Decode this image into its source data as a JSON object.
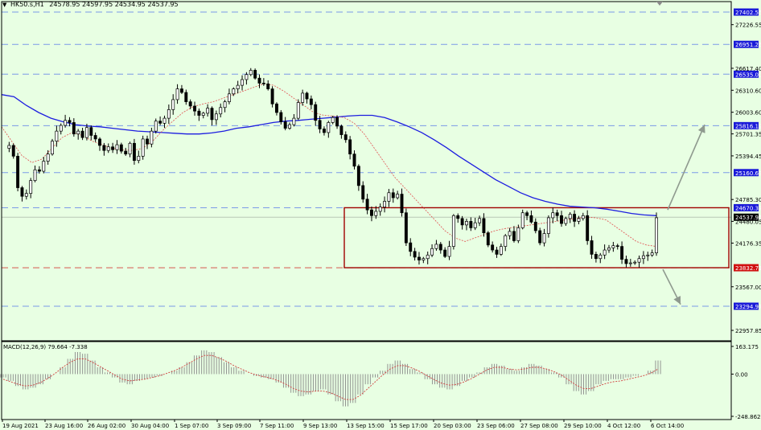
{
  "header": {
    "symbol": "HK50.s,H1",
    "ohlc": "24578.95 24597.95 24534.95 24537.95",
    "macd_label": "MACD(12,26,9) 79.664 -7.338"
  },
  "colors": {
    "background": "#e8ffe3",
    "candle": "#000000",
    "ma_slow": "#1d1de0",
    "ma_fast": "#e05050",
    "level_line": "#6f8fe8",
    "level_badge": "#1a1ad8",
    "current_badge": "#000000",
    "support_badge": "#d01010",
    "range_box": "#a00000",
    "arrow": "#8f9a8f",
    "macd_hist": "#8a8a8a",
    "macd_signal": "#d04040"
  },
  "chart_data": {
    "type": "candlestick",
    "timeframe": "H1",
    "x_ticks": [
      "19 Aug 2021",
      "23 Aug 16:00",
      "26 Aug 02:00",
      "30 Aug 04:00",
      "1 Sep 07:00",
      "3 Sep 09:00",
      "7 Sep 11:00",
      "9 Sep 13:00",
      "13 Sep 15:00",
      "15 Sep 17:00",
      "20 Sep 03:00",
      "23 Sep 06:00",
      "27 Sep 08:00",
      "29 Sep 10:00",
      "4 Oct 12:00",
      "6 Oct 14:00"
    ],
    "y_ticks": [
      "27226.55",
      "26617.40",
      "26310.60",
      "26003.60",
      "25701.35",
      "25394.45",
      "24785.30",
      "24480.05",
      "24176.35",
      "23567.00",
      "22957.85"
    ],
    "y_range": [
      22800,
      27500
    ],
    "levels": [
      {
        "label": "27402.55",
        "price": 27402.55,
        "style": "blue"
      },
      {
        "label": "26951.26",
        "price": 26951.26,
        "style": "blue"
      },
      {
        "label": "26535.00",
        "price": 26535.0,
        "style": "blue"
      },
      {
        "label": "25816.19",
        "price": 25816.19,
        "style": "blue"
      },
      {
        "label": "25160.63",
        "price": 25160.63,
        "style": "blue"
      },
      {
        "label": "24670.37",
        "price": 24670.37,
        "style": "blue"
      },
      {
        "label": "24537.95",
        "price": 24537.95,
        "style": "current"
      },
      {
        "label": "23832.71",
        "price": 23832.71,
        "style": "red"
      },
      {
        "label": "23294.97",
        "price": 23294.97,
        "style": "blue"
      }
    ],
    "range_box": {
      "top": 24670.37,
      "bottom": 23832.71,
      "start_index": 420
    },
    "arrows": [
      {
        "from_price": 24640,
        "to_price": 25830,
        "direction": "up"
      },
      {
        "from_price": 23810,
        "to_price": 23320,
        "direction": "down"
      }
    ],
    "close_path": [
      25500,
      25540,
      25390,
      24950,
      24830,
      24870,
      25050,
      25200,
      25180,
      25320,
      25420,
      25600,
      25740,
      25820,
      25890,
      25860,
      25700,
      25740,
      25650,
      25790,
      25680,
      25630,
      25540,
      25470,
      25520,
      25480,
      25550,
      25460,
      25420,
      25570,
      25330,
      25390,
      25630,
      25560,
      25740,
      25880,
      25850,
      25920,
      26040,
      26180,
      26330,
      26280,
      26150,
      26090,
      26020,
      25960,
      25990,
      26060,
      25900,
      25980,
      26070,
      26150,
      26260,
      26330,
      26380,
      26460,
      26530,
      26590,
      26480,
      26410,
      26400,
      26330,
      26120,
      26000,
      25870,
      25780,
      25830,
      25920,
      26140,
      26270,
      26190,
      26110,
      25890,
      25770,
      25720,
      25860,
      25930,
      25810,
      25690,
      25620,
      25420,
      25250,
      24980,
      24790,
      24640,
      24560,
      24620,
      24680,
      24760,
      24880,
      24810,
      24860,
      24600,
      24180,
      24060,
      23980,
      23940,
      23960,
      24010,
      24100,
      24160,
      24080,
      23990,
      24130,
      24560,
      24520,
      24430,
      24480,
      24390,
      24460,
      24520,
      24320,
      24150,
      24080,
      24020,
      24130,
      24280,
      24340,
      24210,
      24390,
      24600,
      24560,
      24470,
      24350,
      24180,
      24310,
      24530,
      24600,
      24560,
      24450,
      24520,
      24580,
      24480,
      24520,
      24560,
      24210,
      24020,
      23960,
      24010,
      24080,
      24110,
      24140,
      24130,
      23950,
      23890,
      23900,
      23910,
      23960,
      24000,
      24010,
      24040,
      24530
    ],
    "ma_slow_path": [
      26250,
      26220,
      26100,
      26000,
      25920,
      25870,
      25830,
      25810,
      25800,
      25780,
      25760,
      25740,
      25730,
      25720,
      25710,
      25700,
      25700,
      25715,
      25740,
      25780,
      25800,
      25830,
      25860,
      25880,
      25890,
      25905,
      25920,
      25935,
      25950,
      25960,
      25960,
      25930,
      25870,
      25800,
      25720,
      25620,
      25510,
      25390,
      25280,
      25170,
      25060,
      24970,
      24880,
      24810,
      24760,
      24720,
      24690,
      24680,
      24670,
      24650,
      24620,
      24590,
      24570,
      24560
    ],
    "ma_fast_path": [
      25800,
      25600,
      25400,
      25300,
      25350,
      25500,
      25650,
      25720,
      25680,
      25600,
      25550,
      25500,
      25480,
      25470,
      25500,
      25600,
      25750,
      25880,
      26000,
      26080,
      26120,
      26150,
      26200,
      26250,
      26300,
      26350,
      26400,
      26380,
      26300,
      26200,
      26100,
      26000,
      25960,
      25950,
      25930,
      25850,
      25700,
      25500,
      25300,
      25100,
      24950,
      24800,
      24650,
      24500,
      24350,
      24250,
      24200,
      24250,
      24300,
      24350,
      24380,
      24400,
      24420,
      24440,
      24460,
      24480,
      24500,
      24520,
      24540,
      24530,
      24500,
      24400,
      24300,
      24200,
      24150,
      24130
    ],
    "macd": {
      "label": "MACD(12,26,9) 79.664 -7.338",
      "y_ticks": [
        "163.175",
        "0.00",
        "-248.862"
      ],
      "y_range": [
        -248.862,
        163.175
      ],
      "histogram": [
        -20,
        -40,
        -70,
        -90,
        -80,
        -60,
        -30,
        0,
        40,
        90,
        130,
        120,
        80,
        40,
        10,
        -20,
        -50,
        -60,
        -40,
        -30,
        -20,
        -10,
        0,
        20,
        40,
        70,
        110,
        140,
        130,
        100,
        70,
        40,
        20,
        0,
        -10,
        -20,
        -30,
        -50,
        -80,
        -110,
        -130,
        -120,
        -100,
        -90,
        -120,
        -160,
        -190,
        -170,
        -120,
        -60,
        -20,
        20,
        60,
        80,
        60,
        30,
        10,
        -30,
        -60,
        -80,
        -90,
        -70,
        -40,
        -20,
        10,
        40,
        60,
        50,
        30,
        20,
        40,
        60,
        50,
        30,
        10,
        -20,
        -60,
        -100,
        -120,
        -100,
        -60,
        -40,
        -30,
        -30,
        -20,
        -10,
        0,
        20,
        80
      ],
      "signal": [
        -30,
        -45,
        -60,
        -70,
        -65,
        -50,
        -25,
        5,
        40,
        70,
        90,
        90,
        70,
        45,
        20,
        -5,
        -30,
        -40,
        -35,
        -30,
        -20,
        -10,
        5,
        20,
        40,
        65,
        90,
        110,
        110,
        95,
        75,
        50,
        30,
        10,
        -5,
        -15,
        -25,
        -40,
        -60,
        -85,
        -100,
        -105,
        -100,
        -100,
        -110,
        -130,
        -150,
        -150,
        -125,
        -85,
        -45,
        -5,
        30,
        50,
        50,
        35,
        15,
        -10,
        -35,
        -55,
        -65,
        -60,
        -45,
        -25,
        0,
        25,
        40,
        40,
        30,
        25,
        30,
        40,
        40,
        30,
        15,
        -5,
        -35,
        -65,
        -85,
        -85,
        -70,
        -55,
        -45,
        -40,
        -30,
        -20,
        -10,
        5,
        30
      ]
    }
  }
}
